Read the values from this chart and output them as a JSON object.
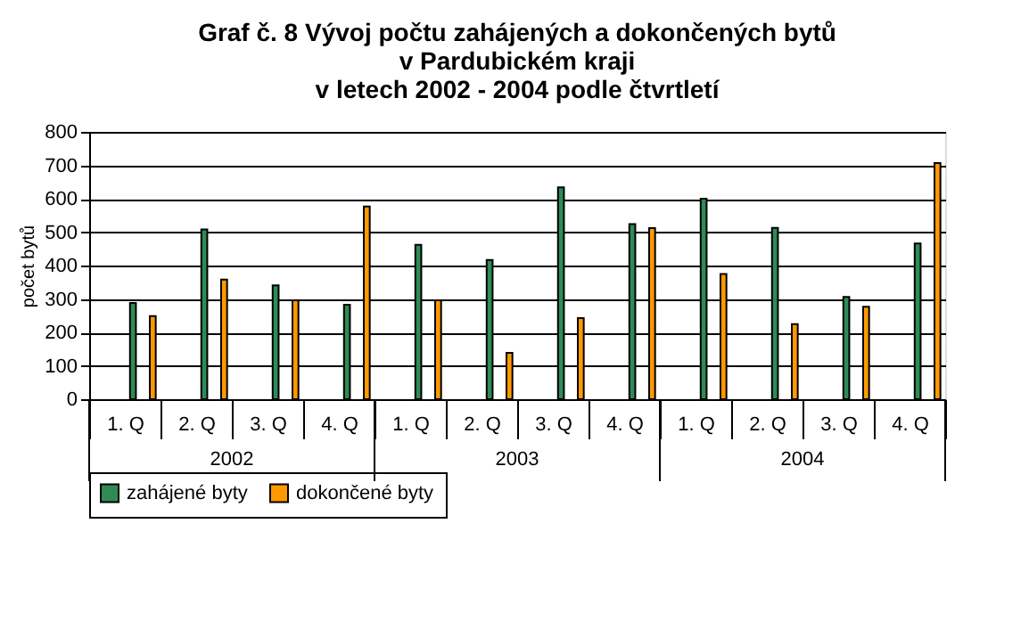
{
  "chart_data": {
    "type": "bar",
    "title": "Graf č. 8  Vývoj počtu zahájených a dokončených bytů\nv Pardubickém kraji\nv letech 2002 - 2004 podle čtvrtletí",
    "ylabel": "počet bytů",
    "categories": [
      "1. Q",
      "2. Q",
      "3. Q",
      "4. Q",
      "1. Q",
      "2. Q",
      "3. Q",
      "4. Q",
      "1. Q",
      "2. Q",
      "3. Q",
      "4. Q"
    ],
    "series": [
      {
        "name": "zahájené byty",
        "color": "#2e8b57",
        "values": [
          288,
          508,
          341,
          283,
          462,
          417,
          634,
          524,
          600,
          513,
          306,
          466
        ]
      },
      {
        "name": "dokončené byty",
        "color": "#ff9900",
        "values": [
          249,
          358,
          296,
          577,
          296,
          139,
          243,
          512,
          375,
          225,
          277,
          707
        ]
      }
    ],
    "annotations": [
      "2002",
      "2003",
      "2004"
    ],
    "ylim": [
      0,
      800
    ],
    "yticks": [
      0,
      100,
      200,
      300,
      400,
      500,
      600,
      700,
      800
    ],
    "grid": "y",
    "legend": "bottom"
  }
}
